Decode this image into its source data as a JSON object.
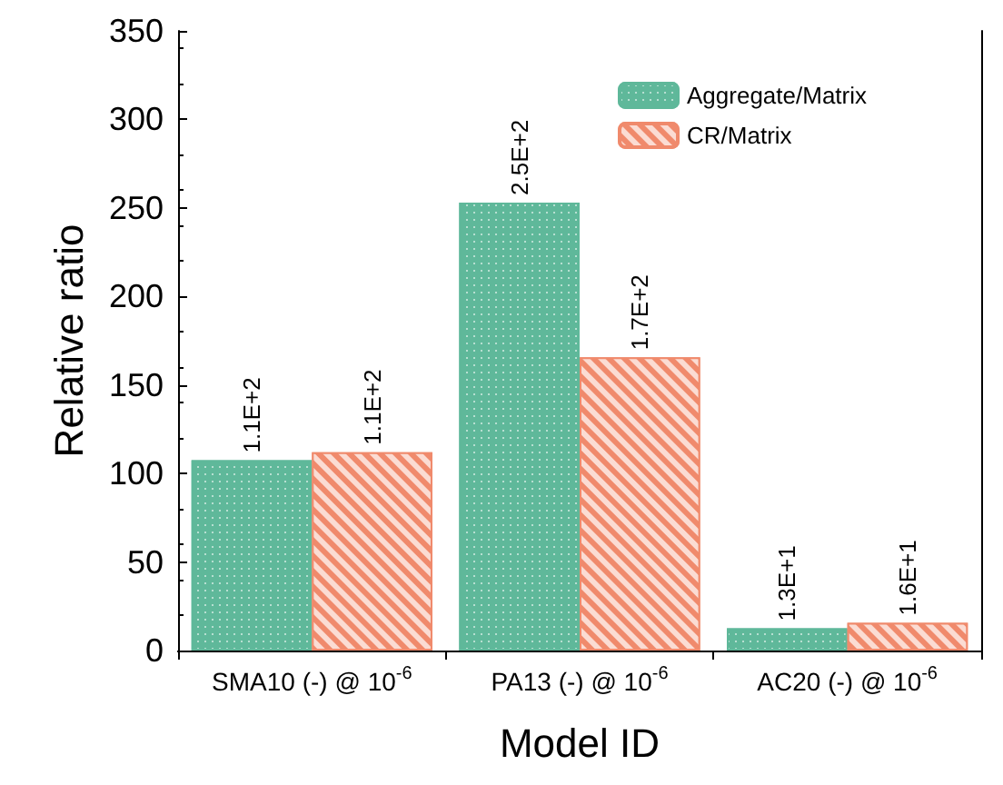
{
  "chart_data": {
    "type": "bar",
    "xlabel": "Model ID",
    "ylabel": "Relative ratio",
    "categories": [
      "SMA10 (-) @ 10$^{-6}$",
      "PA13 (-) @ 10$^{-6}$",
      "AC20 (-) @ 10$^{-6}$"
    ],
    "series": [
      {
        "name": "Aggregate/Matrix",
        "color": "#5fb89a",
        "values": [
          107.5,
          253,
          12.6
        ],
        "value_labels": [
          "1.1E+2",
          "2.5E+2",
          "1.3E+1"
        ]
      },
      {
        "name": "CR/Matrix",
        "color": "#f08a6c",
        "values": [
          112,
          165.6,
          15.7
        ],
        "value_labels": [
          "1.1E+2",
          "1.7E+2",
          "1.6E+1"
        ]
      }
    ],
    "ylim": [
      0,
      350
    ],
    "yticks": [
      0,
      50,
      100,
      150,
      200,
      250,
      300,
      350
    ],
    "grid": false,
    "legend": "top right"
  }
}
